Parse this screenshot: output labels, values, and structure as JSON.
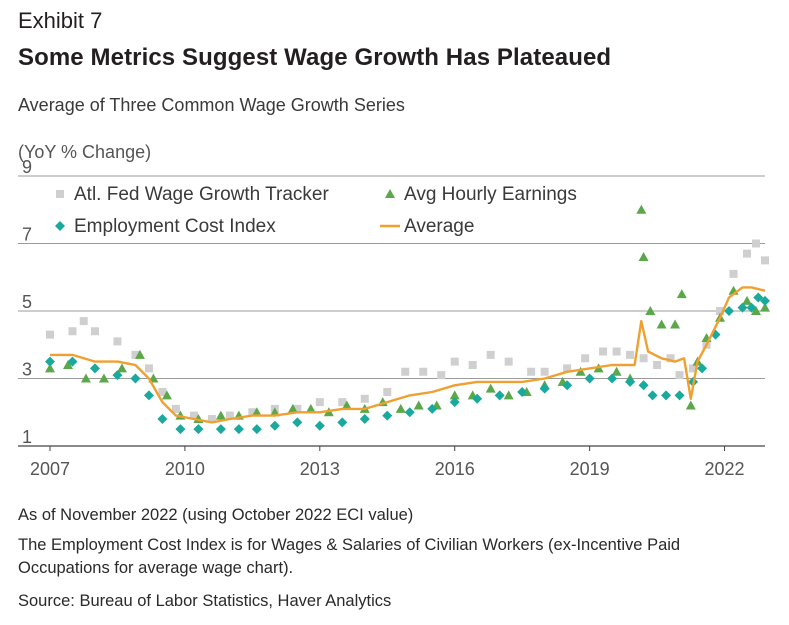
{
  "header": {
    "exhibit": "Exhibit 7",
    "title": "Some Metrics Suggest Wage Growth Has Plateaued",
    "subtitle": "Average of Three Common Wage Growth Series",
    "unit_label": "(YoY % Change)"
  },
  "notes": {
    "as_of": "As of November 2022 (using October 2022 ECI value)",
    "eci_note": "The Employment Cost Index is for Wages & Salaries of Civilian Workers (ex-Incentive Paid Occupations for average wage chart).",
    "source": "Source: Bureau of Labor Statistics, Haver Analytics"
  },
  "colors": {
    "atl": "#cfcfcf",
    "ahe": "#5aa84a",
    "eci": "#1aa99d",
    "avg": "#f0a030",
    "grid": "#7a7a7a",
    "axis": "#444444"
  },
  "chart_data": {
    "type": "line",
    "title": "Some Metrics Suggest Wage Growth Has Plateaued",
    "ylabel": "(YoY % Change)",
    "xlim": [
      2007,
      2022.9
    ],
    "ylim": [
      1,
      9
    ],
    "yticks": [
      1,
      3,
      5,
      7,
      9
    ],
    "xticks": [
      2007,
      2010,
      2013,
      2016,
      2019,
      2022
    ],
    "grid": "horizontal",
    "legend_position": "top-left",
    "series": [
      {
        "name": "Atl. Fed Wage Growth Tracker",
        "marker": "square",
        "key": "atl",
        "points": [
          [
            2007,
            4.3
          ],
          [
            2007.5,
            4.4
          ],
          [
            2007.75,
            4.7
          ],
          [
            2008,
            4.4
          ],
          [
            2008.5,
            4.1
          ],
          [
            2008.9,
            3.7
          ],
          [
            2009.2,
            3.3
          ],
          [
            2009.5,
            2.6
          ],
          [
            2009.8,
            2.1
          ],
          [
            2010.2,
            1.9
          ],
          [
            2010.6,
            1.8
          ],
          [
            2011,
            1.9
          ],
          [
            2011.5,
            2.0
          ],
          [
            2012,
            2.1
          ],
          [
            2012.5,
            2.1
          ],
          [
            2013,
            2.3
          ],
          [
            2013.5,
            2.3
          ],
          [
            2014,
            2.4
          ],
          [
            2014.5,
            2.6
          ],
          [
            2014.9,
            3.2
          ],
          [
            2015.3,
            3.2
          ],
          [
            2015.7,
            3.1
          ],
          [
            2016,
            3.5
          ],
          [
            2016.4,
            3.4
          ],
          [
            2016.8,
            3.7
          ],
          [
            2017.2,
            3.5
          ],
          [
            2017.7,
            3.2
          ],
          [
            2018,
            3.2
          ],
          [
            2018.5,
            3.3
          ],
          [
            2018.9,
            3.6
          ],
          [
            2019.3,
            3.8
          ],
          [
            2019.6,
            3.8
          ],
          [
            2019.9,
            3.7
          ],
          [
            2020.2,
            3.6
          ],
          [
            2020.5,
            3.4
          ],
          [
            2020.8,
            3.6
          ],
          [
            2021,
            3.1
          ],
          [
            2021.3,
            3.3
          ],
          [
            2021.6,
            4.0
          ],
          [
            2021.9,
            5.0
          ],
          [
            2022.2,
            6.1
          ],
          [
            2022.5,
            6.7
          ],
          [
            2022.7,
            7.0
          ],
          [
            2022.9,
            6.5
          ]
        ]
      },
      {
        "name": "Avg Hourly Earnings",
        "marker": "triangle",
        "key": "ahe",
        "points": [
          [
            2007,
            3.3
          ],
          [
            2007.4,
            3.4
          ],
          [
            2007.8,
            3.0
          ],
          [
            2008.2,
            3.0
          ],
          [
            2008.6,
            3.3
          ],
          [
            2009,
            3.7
          ],
          [
            2009.3,
            3.0
          ],
          [
            2009.6,
            2.5
          ],
          [
            2009.9,
            1.9
          ],
          [
            2010.3,
            1.8
          ],
          [
            2010.8,
            1.9
          ],
          [
            2011.2,
            1.9
          ],
          [
            2011.6,
            2.0
          ],
          [
            2012,
            2.0
          ],
          [
            2012.4,
            2.1
          ],
          [
            2012.8,
            2.1
          ],
          [
            2013.2,
            2.0
          ],
          [
            2013.6,
            2.2
          ],
          [
            2014,
            2.1
          ],
          [
            2014.4,
            2.3
          ],
          [
            2014.8,
            2.1
          ],
          [
            2015.2,
            2.2
          ],
          [
            2015.6,
            2.2
          ],
          [
            2016,
            2.5
          ],
          [
            2016.4,
            2.5
          ],
          [
            2016.8,
            2.7
          ],
          [
            2017.2,
            2.5
          ],
          [
            2017.6,
            2.6
          ],
          [
            2018,
            2.8
          ],
          [
            2018.4,
            2.9
          ],
          [
            2018.8,
            3.2
          ],
          [
            2019.2,
            3.3
          ],
          [
            2019.6,
            3.2
          ],
          [
            2019.9,
            3.0
          ],
          [
            2020.15,
            8.0
          ],
          [
            2020.2,
            6.6
          ],
          [
            2020.35,
            5.0
          ],
          [
            2020.6,
            4.6
          ],
          [
            2020.9,
            4.6
          ],
          [
            2021.05,
            5.5
          ],
          [
            2021.25,
            2.2
          ],
          [
            2021.4,
            3.5
          ],
          [
            2021.6,
            4.2
          ],
          [
            2021.9,
            4.8
          ],
          [
            2022.2,
            5.6
          ],
          [
            2022.5,
            5.3
          ],
          [
            2022.7,
            5.0
          ],
          [
            2022.9,
            5.1
          ]
        ]
      },
      {
        "name": "Employment Cost Index",
        "marker": "diamond",
        "key": "eci",
        "points": [
          [
            2007,
            3.5
          ],
          [
            2007.5,
            3.5
          ],
          [
            2008,
            3.3
          ],
          [
            2008.5,
            3.1
          ],
          [
            2008.9,
            3.0
          ],
          [
            2009.2,
            2.5
          ],
          [
            2009.5,
            1.8
          ],
          [
            2009.9,
            1.5
          ],
          [
            2010.3,
            1.5
          ],
          [
            2010.8,
            1.5
          ],
          [
            2011.2,
            1.5
          ],
          [
            2011.6,
            1.5
          ],
          [
            2012,
            1.6
          ],
          [
            2012.5,
            1.7
          ],
          [
            2013,
            1.6
          ],
          [
            2013.5,
            1.7
          ],
          [
            2014,
            1.8
          ],
          [
            2014.5,
            1.9
          ],
          [
            2015,
            2.0
          ],
          [
            2015.5,
            2.1
          ],
          [
            2016,
            2.3
          ],
          [
            2016.5,
            2.4
          ],
          [
            2017,
            2.5
          ],
          [
            2017.5,
            2.6
          ],
          [
            2018,
            2.7
          ],
          [
            2018.5,
            2.8
          ],
          [
            2019,
            3.0
          ],
          [
            2019.5,
            3.0
          ],
          [
            2019.9,
            2.9
          ],
          [
            2020.2,
            2.8
          ],
          [
            2020.4,
            2.5
          ],
          [
            2020.7,
            2.5
          ],
          [
            2021,
            2.5
          ],
          [
            2021.3,
            2.9
          ],
          [
            2021.5,
            3.3
          ],
          [
            2021.8,
            4.3
          ],
          [
            2022.1,
            5.0
          ],
          [
            2022.4,
            5.1
          ],
          [
            2022.6,
            5.1
          ],
          [
            2022.75,
            5.4
          ],
          [
            2022.9,
            5.3
          ]
        ]
      },
      {
        "name": "Average",
        "marker": "line",
        "key": "avg",
        "points": [
          [
            2007,
            3.7
          ],
          [
            2007.5,
            3.7
          ],
          [
            2008,
            3.5
          ],
          [
            2008.5,
            3.5
          ],
          [
            2008.9,
            3.4
          ],
          [
            2009.2,
            3.0
          ],
          [
            2009.5,
            2.3
          ],
          [
            2009.8,
            1.9
          ],
          [
            2010.2,
            1.8
          ],
          [
            2010.6,
            1.7
          ],
          [
            2011,
            1.8
          ],
          [
            2011.5,
            1.9
          ],
          [
            2012,
            1.9
          ],
          [
            2012.5,
            2.0
          ],
          [
            2013,
            2.0
          ],
          [
            2013.5,
            2.1
          ],
          [
            2014,
            2.1
          ],
          [
            2014.5,
            2.3
          ],
          [
            2015,
            2.5
          ],
          [
            2015.5,
            2.6
          ],
          [
            2016,
            2.8
          ],
          [
            2016.5,
            2.9
          ],
          [
            2017,
            2.9
          ],
          [
            2017.5,
            2.9
          ],
          [
            2018,
            3.0
          ],
          [
            2018.5,
            3.2
          ],
          [
            2019,
            3.3
          ],
          [
            2019.5,
            3.4
          ],
          [
            2020,
            3.4
          ],
          [
            2020.15,
            4.7
          ],
          [
            2020.3,
            3.8
          ],
          [
            2020.6,
            3.6
          ],
          [
            2020.9,
            3.5
          ],
          [
            2021.1,
            3.6
          ],
          [
            2021.25,
            2.4
          ],
          [
            2021.4,
            3.5
          ],
          [
            2021.6,
            4.0
          ],
          [
            2021.9,
            4.8
          ],
          [
            2022.1,
            5.4
          ],
          [
            2022.4,
            5.7
          ],
          [
            2022.6,
            5.7
          ],
          [
            2022.9,
            5.6
          ]
        ]
      }
    ]
  }
}
